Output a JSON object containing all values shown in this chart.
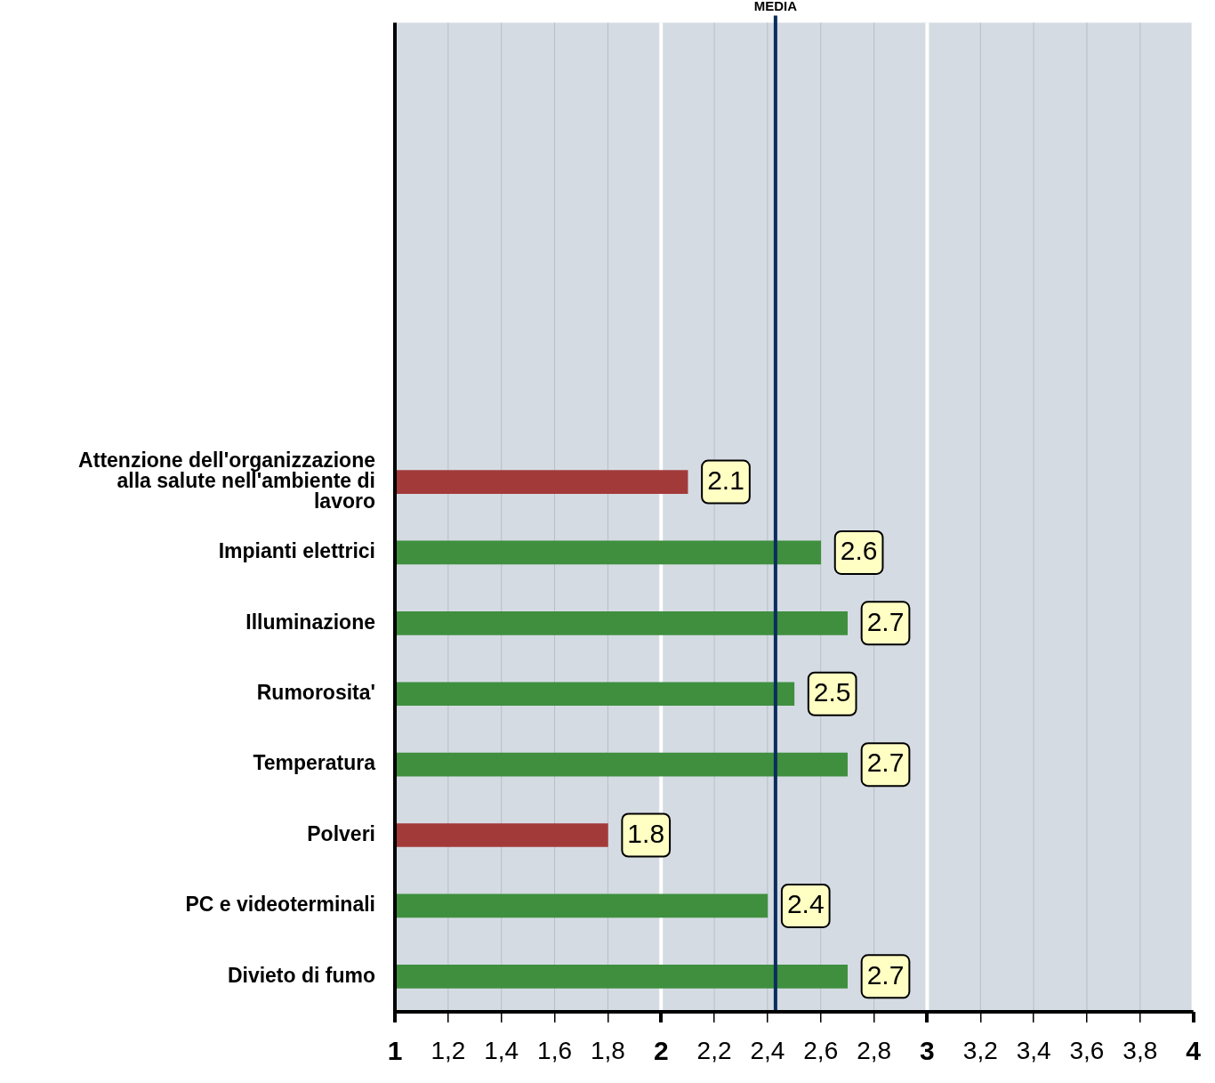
{
  "chart_data": {
    "type": "bar",
    "orientation": "horizontal",
    "categories": [
      null,
      null,
      null,
      null,
      null,
      null,
      "Attenzione dell'organizzazione alla salute nell'ambiente di lavoro",
      "Impianti elettrici",
      "Illuminazione",
      "Rumorosita'",
      "Temperatura",
      "Polveri",
      "PC e videoterminali",
      "Divieto di fumo"
    ],
    "values": [
      null,
      null,
      null,
      null,
      null,
      null,
      2.1,
      2.6,
      2.7,
      2.5,
      2.7,
      1.8,
      2.4,
      2.7
    ],
    "colors": [
      "#3f8f3f",
      "#3f8f3f",
      "#3f8f3f",
      "#3f8f3f",
      "#3f8f3f",
      "#3f8f3f",
      "#a33a3a",
      "#3f8f3f",
      "#3f8f3f",
      "#3f8f3f",
      "#3f8f3f",
      "#a33a3a",
      "#3f8f3f",
      "#3f8f3f"
    ],
    "xlim": [
      1,
      4
    ],
    "xticks": [
      1,
      {
        "value": 1.2,
        "label": "1,2"
      },
      {
        "value": 1.4,
        "label": "1,4"
      },
      {
        "value": 1.6,
        "label": "1,6"
      },
      {
        "value": 1.8,
        "label": "1,8"
      },
      2,
      {
        "value": 2.2,
        "label": "2,2"
      },
      {
        "value": 2.4,
        "label": "2,4"
      },
      {
        "value": 2.6,
        "label": "2,6"
      },
      {
        "value": 2.8,
        "label": "2,8"
      },
      3,
      {
        "value": 3.2,
        "label": "3,2"
      },
      {
        "value": 3.4,
        "label": "3,4"
      },
      {
        "value": 3.6,
        "label": "3,6"
      },
      {
        "value": 3.8,
        "label": "3,8"
      },
      4
    ],
    "ref_lines": [
      {
        "axis": "x",
        "value": 2.43,
        "label": "MEDIA",
        "color": "#0a2d5c"
      }
    ],
    "data_labels": true,
    "grid": "x",
    "legend": false
  }
}
